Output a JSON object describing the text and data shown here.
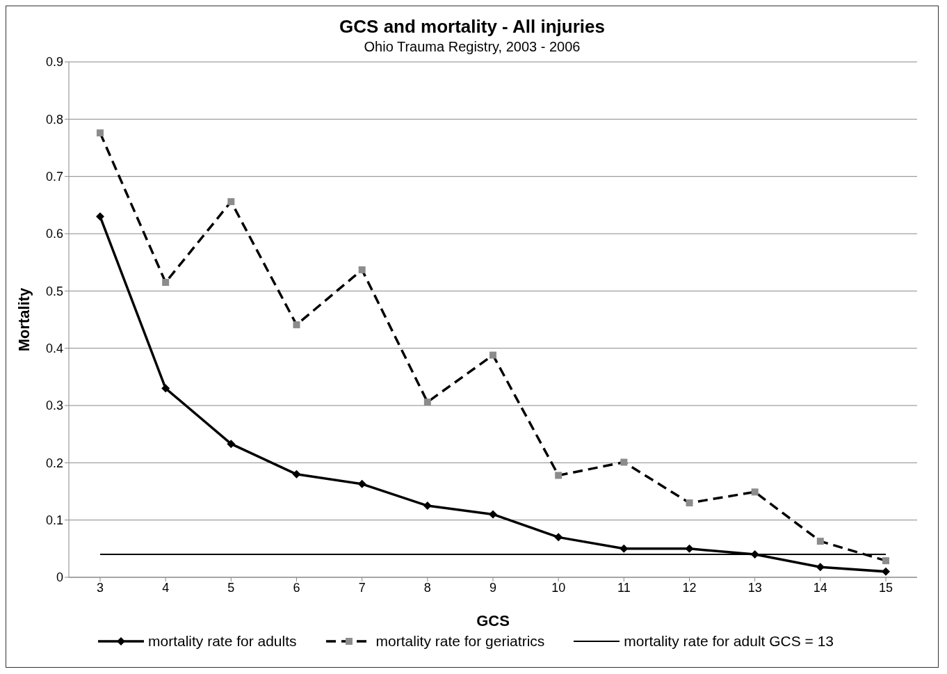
{
  "chart_data": {
    "type": "line",
    "title": "GCS and mortality - All injuries",
    "subtitle": "Ohio Trauma Registry, 2003 - 2006",
    "xlabel": "GCS",
    "ylabel": "Mortality",
    "categories": [
      "3",
      "4",
      "5",
      "6",
      "7",
      "8",
      "9",
      "10",
      "11",
      "12",
      "13",
      "14",
      "15"
    ],
    "series": [
      {
        "name": "mortality rate for adults",
        "color": "#000000",
        "marker": "diamond",
        "line_style": "solid",
        "values": [
          0.63,
          0.33,
          0.233,
          0.18,
          0.163,
          0.125,
          0.11,
          0.07,
          0.05,
          0.05,
          0.04,
          0.018,
          0.01
        ]
      },
      {
        "name": "mortality rate for geriatrics",
        "color": "#000000",
        "marker": "square",
        "line_style": "dashed",
        "values": [
          0.776,
          0.515,
          0.656,
          0.441,
          0.537,
          0.306,
          0.388,
          0.178,
          0.201,
          0.13,
          0.149,
          0.063,
          0.029
        ]
      },
      {
        "name": "mortality rate for adult GCS = 13",
        "color": "#000000",
        "marker": "none",
        "line_style": "solid",
        "values": [
          0.04,
          0.04,
          0.04,
          0.04,
          0.04,
          0.04,
          0.04,
          0.04,
          0.04,
          0.04,
          0.04,
          0.04,
          0.04
        ]
      }
    ],
    "ylim": [
      0,
      0.9
    ],
    "yticks": [
      0,
      0.1,
      0.2,
      0.3,
      0.4,
      0.5,
      0.6,
      0.7,
      0.8,
      0.9
    ],
    "grid": "y",
    "legend": "bottom"
  }
}
